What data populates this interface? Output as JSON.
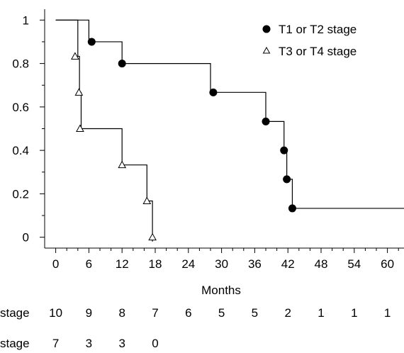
{
  "chart_data": {
    "type": "line",
    "xlabel": "Months",
    "ylabel": "",
    "xlim": [
      -2,
      63
    ],
    "ylim": [
      -0.05,
      1.05
    ],
    "x_ticks": [
      0,
      6,
      12,
      18,
      24,
      30,
      36,
      42,
      48,
      54,
      60
    ],
    "x_tick_labels": [
      "0",
      "6",
      "12",
      "18",
      "24",
      "30",
      "36",
      "42",
      "48",
      "54",
      "60"
    ],
    "y_ticks": [
      0,
      0.2,
      0.4,
      0.6,
      0.8,
      1
    ],
    "y_tick_labels": [
      "0",
      "0.2",
      "0.4",
      "0.6",
      "0.8",
      "1"
    ],
    "grid": false,
    "legend_position": "top-right",
    "series": [
      {
        "name": "T1 or T2 stage",
        "marker": "filled-circle",
        "color": "#000000",
        "steps": [
          [
            0,
            1
          ],
          [
            6,
            0.9
          ],
          [
            12,
            0.8
          ],
          [
            28,
            0.667
          ],
          [
            38,
            0.533
          ],
          [
            41.3,
            0.4
          ],
          [
            41.8,
            0.267
          ],
          [
            42.8,
            0.133
          ],
          [
            63,
            0.133
          ]
        ],
        "markers": [
          [
            6.5,
            0.9
          ],
          [
            12,
            0.8
          ],
          [
            28.5,
            0.667
          ],
          [
            38,
            0.533
          ],
          [
            41.3,
            0.4
          ],
          [
            41.8,
            0.267
          ],
          [
            42.8,
            0.133
          ]
        ]
      },
      {
        "name": "T3 or T4 stage",
        "marker": "open-triangle",
        "color": "#000000",
        "steps": [
          [
            0,
            1
          ],
          [
            4,
            0.833
          ],
          [
            4.3,
            0.667
          ],
          [
            4.6,
            0.5
          ],
          [
            12,
            0.333
          ],
          [
            16.5,
            0.167
          ],
          [
            17.5,
            0
          ],
          [
            17.5,
            -0.02
          ]
        ],
        "markers": [
          [
            3.5,
            0.833
          ],
          [
            4.2,
            0.667
          ],
          [
            4.4,
            0.5
          ],
          [
            12,
            0.333
          ],
          [
            16.5,
            0.167
          ],
          [
            17.5,
            0
          ]
        ]
      }
    ],
    "risk_table": {
      "rows": [
        {
          "label": "stage",
          "values": [
            "10",
            "9",
            "8",
            "7",
            "6",
            "5",
            "5",
            "2",
            "1",
            "1",
            "1"
          ]
        },
        {
          "label": "stage",
          "values": [
            "7",
            "3",
            "3",
            "0"
          ]
        }
      ]
    }
  }
}
